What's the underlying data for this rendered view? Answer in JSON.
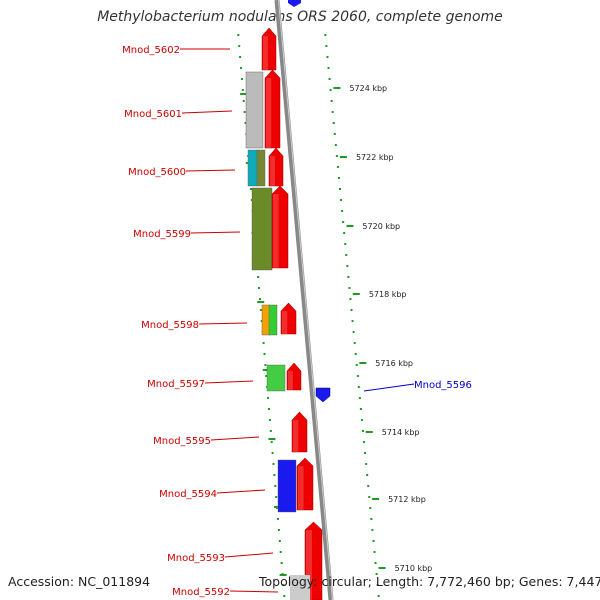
{
  "title": "Methylobacterium nodulans ORS 2060, complete genome",
  "accession": "Accession: NC_011894",
  "genome_info": "Topology: circular; Length: 7,772,460 bp; Genes: 7,447",
  "colors": {
    "forward_gene": "#ee0000",
    "reverse_gene": "#1a1aee",
    "label_forward": "#cc0000",
    "label_reverse": "#0000cc",
    "ruler_dots": "#229922",
    "backbone": "#888888"
  },
  "scale_ticks": [
    "5724 kbp",
    "5722 kbp",
    "5720 kbp",
    "5718 kbp",
    "5716 kbp",
    "5714 kbp",
    "5712 kbp",
    "5710 kbp"
  ],
  "gene_labels": [
    {
      "name": "Mnod_5602",
      "strand": "forward"
    },
    {
      "name": "Mnod_5601",
      "strand": "forward"
    },
    {
      "name": "Mnod_5600",
      "strand": "forward"
    },
    {
      "name": "Mnod_5599",
      "strand": "forward"
    },
    {
      "name": "Mnod_5598",
      "strand": "forward"
    },
    {
      "name": "Mnod_5597",
      "strand": "forward"
    },
    {
      "name": "Mnod_5596",
      "strand": "reverse"
    },
    {
      "name": "Mnod_5595",
      "strand": "forward"
    },
    {
      "name": "Mnod_5594",
      "strand": "forward"
    },
    {
      "name": "Mnod_5593",
      "strand": "forward"
    },
    {
      "name": "Mnod_5592",
      "strand": "forward"
    }
  ]
}
